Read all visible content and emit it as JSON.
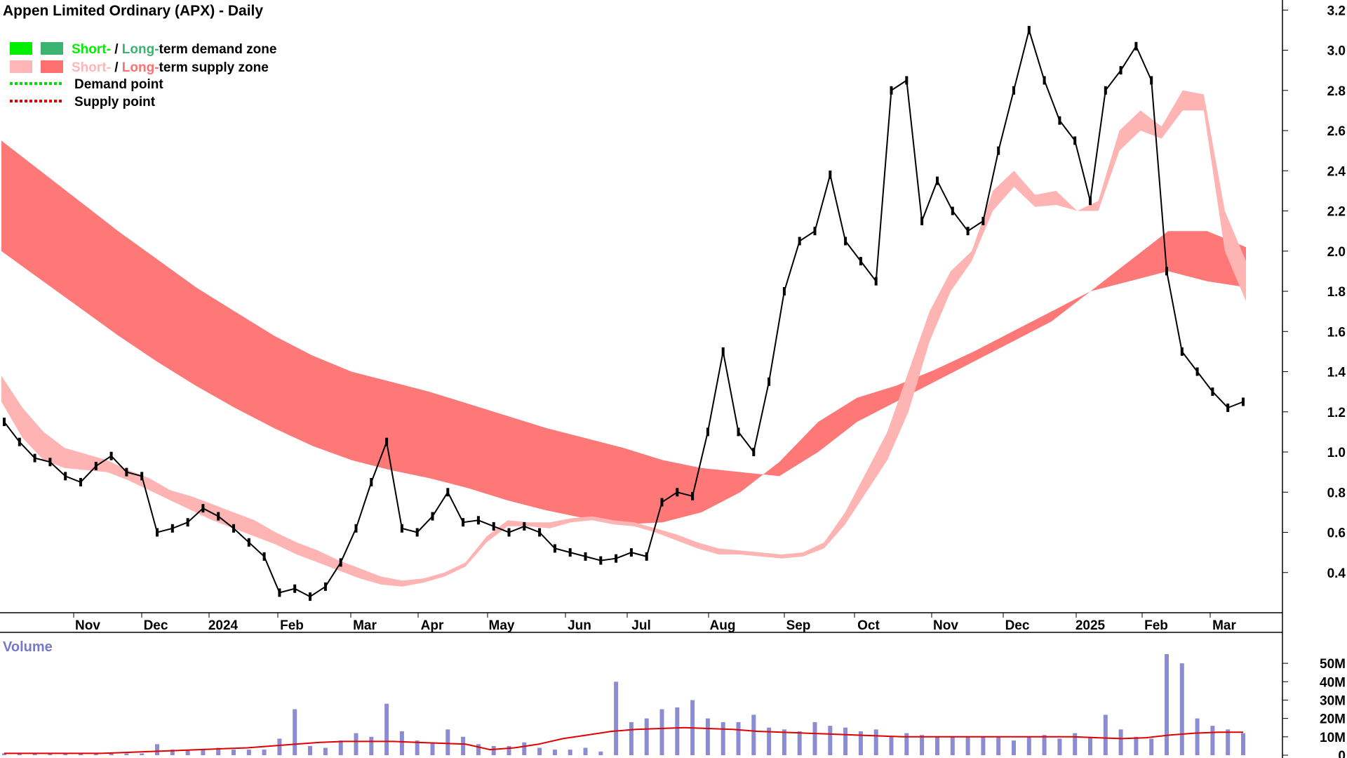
{
  "chart_data": [
    {
      "type": "candlestick",
      "title": "Appen Limited Ordinary (APX) - Daily",
      "legend": [
        {
          "label_a": "Short-",
          "sep": " / ",
          "label_b": "Long-",
          "rest": "term demand zone",
          "color_a": "#00ee00",
          "color_b": "#3cb371"
        },
        {
          "label_a": "Short-",
          "sep": " / ",
          "label_b": "Long-",
          "rest": "term supply zone",
          "color_a": "#ffb6b6",
          "color_b": "#ff7070"
        },
        {
          "label": "Demand point",
          "color": "#00dd00"
        },
        {
          "label": "Supply point",
          "color": "#dd0000"
        }
      ],
      "x_ticks": [
        "Nov",
        "Dec",
        "2024",
        "Feb",
        "Mar",
        "Apr",
        "May",
        "Jun",
        "Jul",
        "Aug",
        "Sep",
        "Oct",
        "Nov",
        "Dec",
        "2025",
        "Feb",
        "Mar"
      ],
      "y_ticks": [
        "3.2",
        "3.0",
        "2.8",
        "2.6",
        "2.4",
        "2.2",
        "2.0",
        "1.8",
        "1.6",
        "1.4",
        "1.2",
        "1.0",
        "0.8",
        "0.6",
        "0.4"
      ],
      "ylim": [
        0.2,
        3.25
      ],
      "price_close": [
        1.15,
        1.05,
        0.97,
        0.95,
        0.88,
        0.85,
        0.93,
        0.98,
        0.9,
        0.88,
        0.6,
        0.62,
        0.65,
        0.72,
        0.68,
        0.62,
        0.55,
        0.48,
        0.3,
        0.32,
        0.28,
        0.33,
        0.45,
        0.62,
        0.85,
        1.05,
        0.62,
        0.6,
        0.68,
        0.8,
        0.65,
        0.66,
        0.63,
        0.6,
        0.63,
        0.6,
        0.52,
        0.5,
        0.48,
        0.46,
        0.47,
        0.5,
        0.48,
        0.75,
        0.8,
        0.78,
        1.1,
        1.5,
        1.1,
        1.0,
        1.35,
        1.8,
        2.05,
        2.1,
        2.38,
        2.05,
        1.95,
        1.85,
        2.8,
        2.85,
        2.15,
        2.35,
        2.2,
        2.1,
        2.15,
        2.5,
        2.8,
        3.1,
        2.85,
        2.65,
        2.55,
        2.25,
        2.8,
        2.9,
        3.02,
        2.85,
        1.9,
        1.5,
        1.4,
        1.3,
        1.22,
        1.25
      ],
      "short_zone_top": [
        1.38,
        1.22,
        1.1,
        1.02,
        0.99,
        0.96,
        0.91,
        0.87,
        0.81,
        0.78,
        0.74,
        0.7,
        0.66,
        0.6,
        0.55,
        0.51,
        0.46,
        0.42,
        0.38,
        0.36,
        0.37,
        0.4,
        0.45,
        0.58,
        0.66,
        0.65,
        0.65,
        0.67,
        0.68,
        0.66,
        0.65,
        0.62,
        0.59,
        0.55,
        0.52,
        0.51,
        0.5,
        0.49,
        0.5,
        0.55,
        0.7,
        0.9,
        1.1,
        1.4,
        1.7,
        1.9,
        2.0,
        2.3,
        2.4,
        2.28,
        2.3,
        2.2,
        2.25,
        2.6,
        2.7,
        2.62,
        2.8,
        2.78,
        2.2,
        1.95
      ],
      "short_zone_bottom": [
        1.25,
        1.07,
        0.96,
        0.92,
        0.91,
        0.9,
        0.86,
        0.81,
        0.76,
        0.71,
        0.66,
        0.62,
        0.58,
        0.54,
        0.49,
        0.45,
        0.41,
        0.37,
        0.34,
        0.33,
        0.35,
        0.38,
        0.43,
        0.55,
        0.63,
        0.63,
        0.62,
        0.65,
        0.66,
        0.64,
        0.63,
        0.6,
        0.56,
        0.52,
        0.49,
        0.49,
        0.48,
        0.47,
        0.48,
        0.52,
        0.64,
        0.8,
        0.96,
        1.2,
        1.55,
        1.8,
        1.95,
        2.2,
        2.32,
        2.22,
        2.23,
        2.2,
        2.2,
        2.5,
        2.6,
        2.56,
        2.7,
        2.7,
        2.0,
        1.75
      ],
      "long_zone_top": [
        2.55,
        2.4,
        2.25,
        2.1,
        1.96,
        1.82,
        1.7,
        1.58,
        1.48,
        1.4,
        1.35,
        1.3,
        1.24,
        1.18,
        1.12,
        1.07,
        1.02,
        0.96,
        0.92,
        0.9,
        0.88,
        1.0,
        1.15,
        1.25,
        1.35,
        1.45,
        1.55,
        1.65,
        1.8,
        1.95,
        2.1,
        2.1,
        2.02
      ],
      "long_zone_bottom": [
        2.0,
        1.86,
        1.72,
        1.58,
        1.45,
        1.33,
        1.22,
        1.12,
        1.03,
        0.96,
        0.91,
        0.87,
        0.82,
        0.76,
        0.71,
        0.67,
        0.64,
        0.65,
        0.7,
        0.8,
        0.95,
        1.15,
        1.27,
        1.33,
        1.41,
        1.5,
        1.6,
        1.7,
        1.8,
        1.85,
        1.9,
        1.85,
        1.82
      ],
      "volume": {
        "label": "Volume",
        "y_ticks": [
          "50M",
          "40M",
          "30M",
          "20M",
          "10M",
          "0"
        ],
        "values_m": [
          1,
          1,
          1,
          1,
          1,
          1,
          1,
          1,
          1,
          1,
          6,
          3,
          3,
          3,
          4,
          3,
          3,
          3,
          9,
          25,
          5,
          4,
          8,
          12,
          10,
          28,
          13,
          8,
          7,
          14,
          10,
          6,
          5,
          5,
          7,
          4,
          3,
          3,
          4,
          2,
          40,
          18,
          20,
          25,
          26,
          30,
          20,
          18,
          18,
          22,
          15,
          14,
          13,
          18,
          16,
          15,
          13,
          14,
          10,
          12,
          11,
          10,
          10,
          10,
          10,
          10,
          8,
          10,
          11,
          9,
          12,
          10,
          22,
          14,
          10,
          9,
          55,
          50,
          20,
          16,
          14,
          12
        ],
        "average_m": [
          1,
          1,
          1,
          1,
          1,
          1.5,
          2,
          2.5,
          3,
          3.5,
          4,
          5,
          6,
          7,
          7.5,
          7.5,
          7.5,
          7,
          6.5,
          6,
          3,
          4,
          6,
          9,
          11,
          13,
          14,
          14.5,
          15,
          14.5,
          14,
          13,
          12.5,
          12,
          11.5,
          11,
          10.5,
          10,
          10,
          10,
          10,
          10,
          10,
          10,
          10,
          9.5,
          9,
          9.5,
          11,
          12,
          12.5,
          12.5
        ]
      }
    }
  ]
}
